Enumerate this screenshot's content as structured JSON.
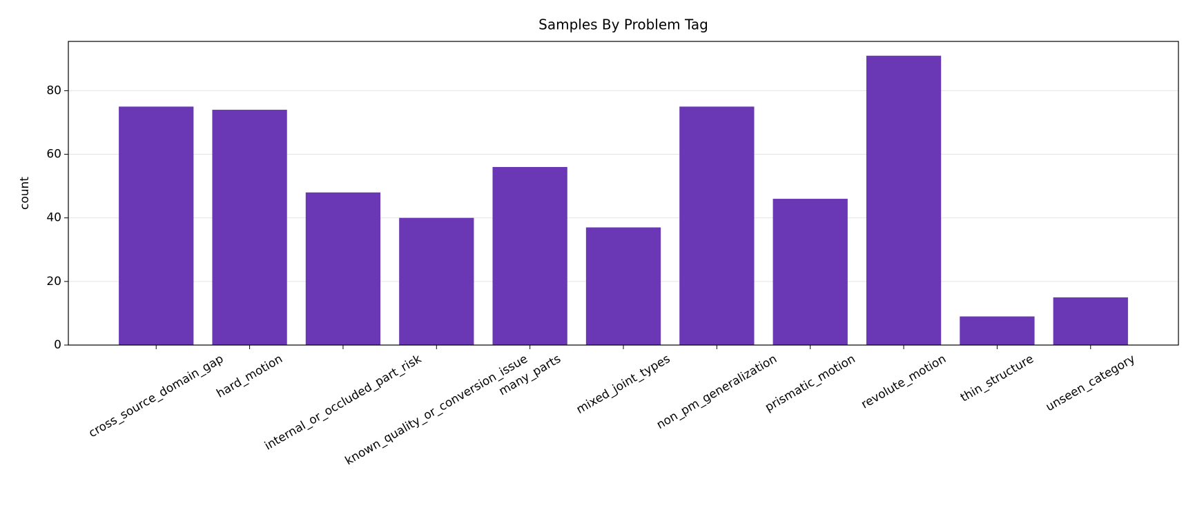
{
  "chart_data": {
    "type": "bar",
    "title": "Samples By Problem Tag",
    "y_label": "count",
    "categories": [
      "cross_source_domain_gap",
      "hard_motion",
      "internal_or_occluded_part_risk",
      "known_quality_or_conversion_issue",
      "many_parts",
      "mixed_joint_types",
      "non_pm_generalization",
      "prismatic_motion",
      "revolute_motion",
      "thin_structure",
      "unseen_category"
    ],
    "values": [
      75,
      74,
      48,
      40,
      56,
      37,
      75,
      46,
      91,
      9,
      15
    ],
    "color": "#6a38b5",
    "ylim": [
      0,
      95.5
    ],
    "yticks": [
      0,
      20,
      40,
      60,
      80
    ],
    "grid": true,
    "x_label_rotation": 30
  }
}
